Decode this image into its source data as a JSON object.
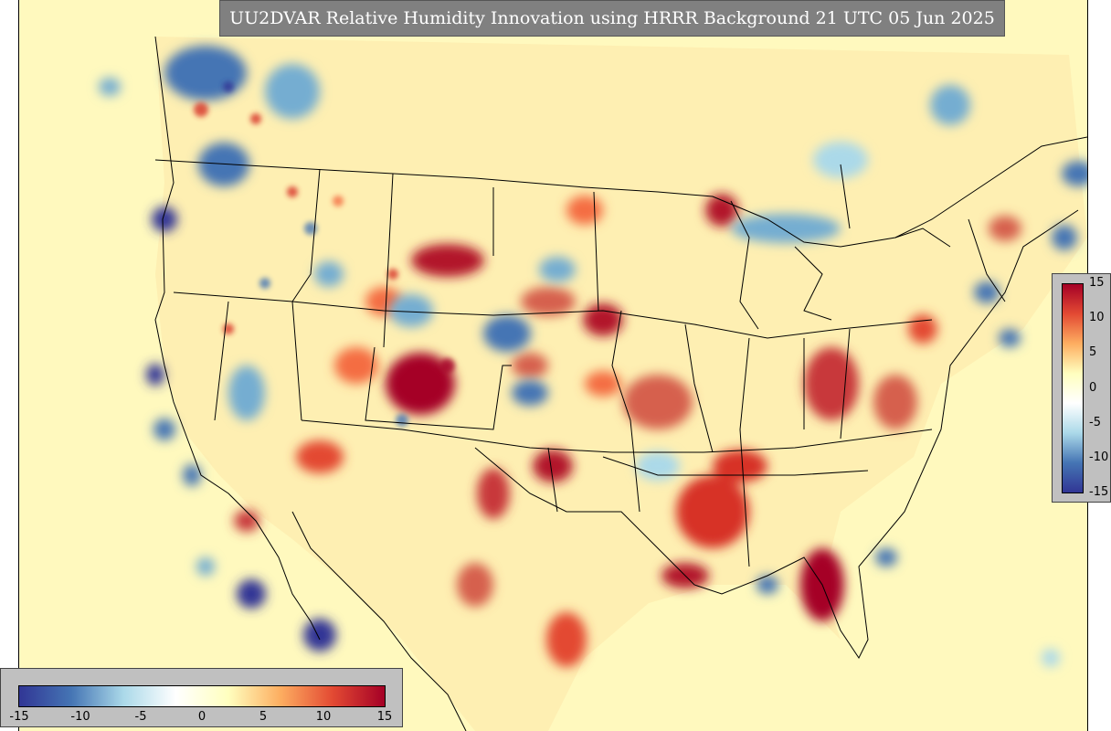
{
  "title": "UU2DVAR Relative Humidity Innovation using HRRR Background 21 UTC 05 Jun 2025",
  "colorbar_right": {
    "ticks": [
      "15",
      "10",
      "5",
      "0",
      "-5",
      "-10",
      "-15"
    ]
  },
  "colorbar_bottom": {
    "ticks": [
      "-15",
      "-10",
      "-5",
      "0",
      "5",
      "10",
      "15"
    ]
  },
  "value_range": [
    -15,
    15
  ],
  "colors": {
    "background": "#fff9be",
    "strong_positive": "#a50026",
    "positive": "#e34a33",
    "weak_positive": "#fdae61",
    "neutral": "#ffffbf",
    "weak_negative": "#abd9e9",
    "negative": "#4575b4",
    "strong_negative": "#313695"
  }
}
